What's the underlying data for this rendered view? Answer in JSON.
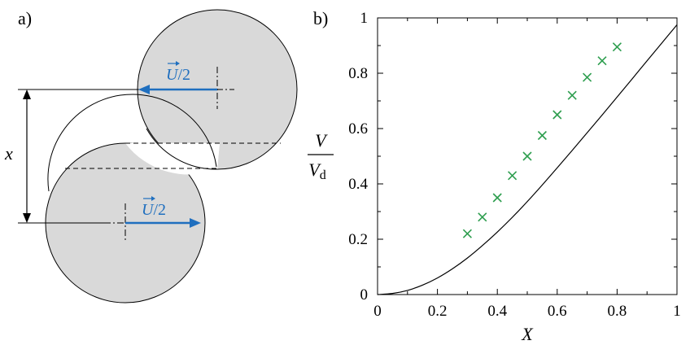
{
  "panels": {
    "a_label": "a)",
    "b_label": "b)"
  },
  "diagram": {
    "velocity_label": "U/2",
    "velocity_symbol": "U",
    "velocity_suffix": "/2",
    "displacement_label": "x",
    "colors": {
      "circle_fill": "#d9d9d9",
      "arrow": "#1f6fbf"
    }
  },
  "chart_data": {
    "type": "line",
    "xlabel": "X",
    "ylabel_numerator": "V",
    "ylabel_denominator": "V",
    "ylabel_subscript": "d",
    "xlim": [
      0,
      1
    ],
    "ylim": [
      0,
      1
    ],
    "xticks": [
      0,
      0.2,
      0.4,
      0.6,
      0.8,
      1
    ],
    "xtick_labels": [
      "0",
      "0.2",
      "0.4",
      "0.6",
      "0.8",
      "1"
    ],
    "yticks": [
      0,
      0.2,
      0.4,
      0.6,
      0.8,
      1
    ],
    "ytick_labels": [
      "0",
      "0.2",
      "0.4",
      "0.6",
      "0.8",
      "1"
    ],
    "grid": false,
    "series": [
      {
        "kind": "line",
        "color": "#000000",
        "x": [
          0,
          0.05,
          0.1,
          0.15,
          0.2,
          0.25,
          0.3,
          0.35,
          0.4,
          0.45,
          0.5,
          0.55,
          0.6,
          0.65,
          0.7,
          0.75,
          0.8,
          0.85,
          0.9,
          0.95,
          1.0
        ],
        "y": [
          0,
          0.004,
          0.015,
          0.034,
          0.06,
          0.093,
          0.132,
          0.177,
          0.226,
          0.279,
          0.336,
          0.396,
          0.458,
          0.521,
          0.585,
          0.649,
          0.714,
          0.779,
          0.845,
          0.91,
          0.975
        ]
      },
      {
        "kind": "scatter",
        "marker": "x",
        "color": "#2e9e4f",
        "x": [
          0.3,
          0.35,
          0.4,
          0.45,
          0.5,
          0.55,
          0.6,
          0.65,
          0.7,
          0.75,
          0.8
        ],
        "y": [
          0.22,
          0.28,
          0.35,
          0.43,
          0.5,
          0.575,
          0.65,
          0.72,
          0.785,
          0.845,
          0.895
        ]
      }
    ]
  }
}
